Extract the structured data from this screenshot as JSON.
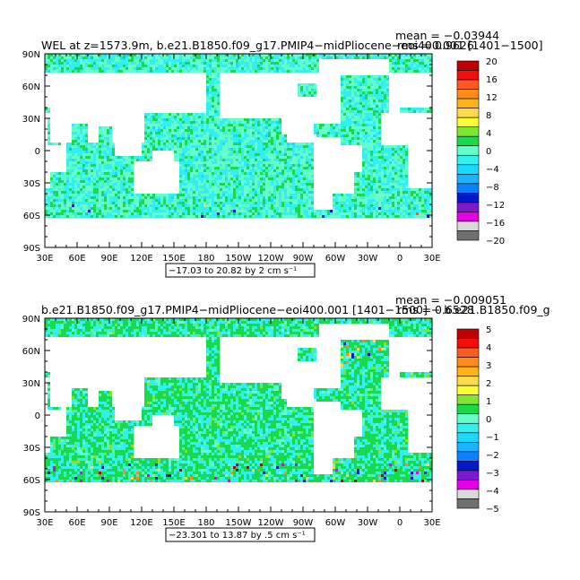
{
  "chart_data": [
    {
      "type": "heatmap",
      "title": "WEL at z=1573.9m, b.e21.B1850.f09_g17.PMIP4−midPliocene−eoi400.001  [1401−1500]",
      "stat_mean": "mean = −0.03944",
      "stat_rms": "rms = 0.9626",
      "range_note": "−17.03 to 20.82 by 2 cm s⁻¹",
      "x_ticks": [
        "30E",
        "60E",
        "90E",
        "120E",
        "150E",
        "180",
        "150W",
        "120W",
        "90W",
        "60W",
        "30W",
        "0",
        "30E"
      ],
      "y_ticks": [
        "90N",
        "60N",
        "30N",
        "0",
        "30S",
        "60S",
        "90S"
      ],
      "colorbar_labels": [
        "20",
        "16",
        "12",
        "8",
        "4",
        "0",
        "−4",
        "−8",
        "−12",
        "−16",
        "−20"
      ],
      "colors": [
        "#bf0000",
        "#f20d0d",
        "#ff5a1f",
        "#ff8c1a",
        "#ffb31a",
        "#ffd94d",
        "#ffff33",
        "#80e633",
        "#19d94d",
        "#66ffcc",
        "#33f0f0",
        "#1ad9ff",
        "#1ab3ff",
        "#0d80ff",
        "#0019cc",
        "#7a1acc",
        "#e600e6",
        "#d9d9d9",
        "#707070"
      ]
    },
    {
      "type": "heatmap",
      "title": "b.e21.B1850.f09_g17.PMIP4−midPliocene−eoi400.001  [1401−1500] − b.e21.B1850.f09_g",
      "stat_mean": "mean = −0.009051",
      "stat_rms": "rms = 0.6528",
      "range_note": "−23.301 to 13.87 by .5 cm s⁻¹",
      "x_ticks": [
        "30E",
        "60E",
        "90E",
        "120E",
        "150E",
        "180",
        "150W",
        "120W",
        "90W",
        "60W",
        "30W",
        "0",
        "30E"
      ],
      "y_ticks": [
        "90N",
        "60N",
        "30N",
        "0",
        "30S",
        "60S",
        "90S"
      ],
      "colorbar_labels": [
        "5",
        "4",
        "3",
        "2",
        "1",
        "0",
        "−1",
        "−2",
        "−3",
        "−4",
        "−5"
      ],
      "colors": [
        "#bf0000",
        "#f20d0d",
        "#ff5a1f",
        "#ff8c1a",
        "#ffb31a",
        "#ffd94d",
        "#ffff33",
        "#80e633",
        "#19d94d",
        "#66ffcc",
        "#33f0f0",
        "#1ad9ff",
        "#1ab3ff",
        "#0d80ff",
        "#0019cc",
        "#7a1acc",
        "#e600e6",
        "#d9d9d9",
        "#707070"
      ]
    }
  ]
}
